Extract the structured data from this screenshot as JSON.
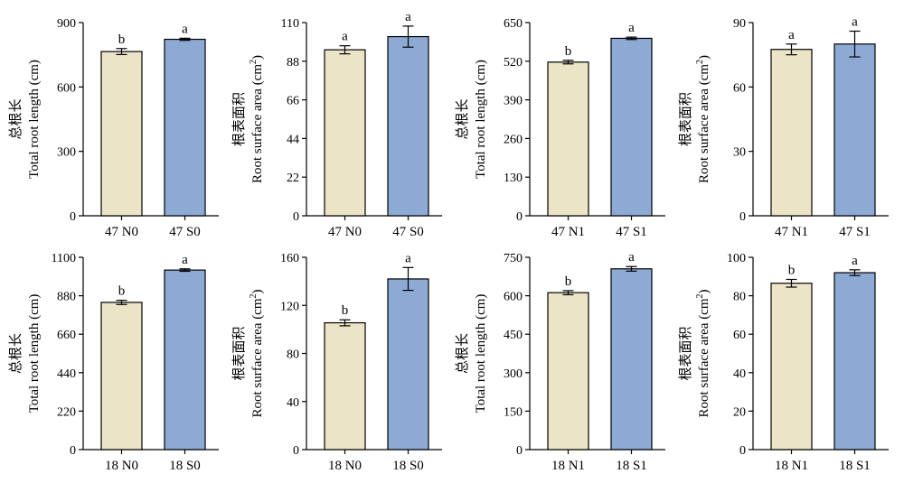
{
  "colors": {
    "N": "#ebe4c6",
    "S": "#8caad4",
    "stroke": "#000000"
  },
  "chart_data": [
    {
      "type": "bar",
      "ylabel_cn": "总根长",
      "ylabel_en": "Total root length (cm)",
      "ylim": [
        0,
        900
      ],
      "yticks": [
        "0",
        "300",
        "600",
        "900"
      ],
      "categories": [
        "47 N0",
        "47 S0"
      ],
      "values": [
        765,
        822
      ],
      "errors": [
        14,
        5
      ],
      "significance": [
        "b",
        "a"
      ]
    },
    {
      "type": "bar",
      "ylabel_cn": "根表面积",
      "ylabel_en": "Root surface area (cm",
      "ylabel_sup": "2",
      "ylabel_end": ")",
      "ylim": [
        0,
        110
      ],
      "yticks": [
        "0",
        "22",
        "44",
        "66",
        "88",
        "110"
      ],
      "categories": [
        "47 N0",
        "47 S0"
      ],
      "values": [
        94.5,
        102
      ],
      "errors": [
        2.3,
        6
      ],
      "significance": [
        "a",
        "a"
      ]
    },
    {
      "type": "bar",
      "ylabel_cn": "总根长",
      "ylabel_en": "Total root length (cm)",
      "ylim": [
        0,
        650
      ],
      "yticks": [
        "0",
        "130",
        "260",
        "390",
        "520",
        "650"
      ],
      "categories": [
        "47 N1",
        "47 S1"
      ],
      "values": [
        517,
        597
      ],
      "errors": [
        6,
        4
      ],
      "significance": [
        "b",
        "a"
      ]
    },
    {
      "type": "bar",
      "ylabel_cn": "根表面积",
      "ylabel_en": "Root surface area (cm",
      "ylabel_sup": "2",
      "ylabel_end": ")",
      "ylim": [
        0,
        90
      ],
      "yticks": [
        "0",
        "30",
        "60",
        "90"
      ],
      "categories": [
        "47 N1",
        "47 S1"
      ],
      "values": [
        77.5,
        80
      ],
      "errors": [
        2.5,
        6
      ],
      "significance": [
        "a",
        "a"
      ]
    },
    {
      "type": "bar",
      "ylabel_cn": "总根长",
      "ylabel_en": "Total root length (cm)",
      "ylim": [
        0,
        1100
      ],
      "yticks": [
        "0",
        "220",
        "440",
        "660",
        "880",
        "1100"
      ],
      "categories": [
        "18 N0",
        "18 S0"
      ],
      "values": [
        842,
        1027
      ],
      "errors": [
        12,
        7
      ],
      "significance": [
        "b",
        "a"
      ]
    },
    {
      "type": "bar",
      "ylabel_cn": "根表面积",
      "ylabel_en": "Root surface area (cm",
      "ylabel_sup": "2",
      "ylabel_end": ")",
      "ylim": [
        0,
        160
      ],
      "yticks": [
        "0",
        "40",
        "80",
        "120",
        "160"
      ],
      "categories": [
        "18 N0",
        "18 S0"
      ],
      "values": [
        105.5,
        142
      ],
      "errors": [
        2.5,
        9.5
      ],
      "significance": [
        "b",
        "a"
      ]
    },
    {
      "type": "bar",
      "ylabel_cn": "总根长",
      "ylabel_en": "Total root length (cm)",
      "ylim": [
        0,
        750
      ],
      "yticks": [
        "0",
        "150",
        "300",
        "450",
        "600",
        "750"
      ],
      "categories": [
        "18 N1",
        "18 S1"
      ],
      "values": [
        612,
        705
      ],
      "errors": [
        8,
        9
      ],
      "significance": [
        "b",
        "a"
      ]
    },
    {
      "type": "bar",
      "ylabel_cn": "根表面积",
      "ylabel_en": "Root surface area (cm",
      "ylabel_sup": "2",
      "ylabel_end": ")",
      "ylim": [
        0,
        100
      ],
      "yticks": [
        "0",
        "20",
        "40",
        "60",
        "80",
        "100"
      ],
      "categories": [
        "18 N1",
        "18 S1"
      ],
      "values": [
        86.5,
        92
      ],
      "errors": [
        2,
        1.5
      ],
      "significance": [
        "b",
        "a"
      ]
    }
  ]
}
